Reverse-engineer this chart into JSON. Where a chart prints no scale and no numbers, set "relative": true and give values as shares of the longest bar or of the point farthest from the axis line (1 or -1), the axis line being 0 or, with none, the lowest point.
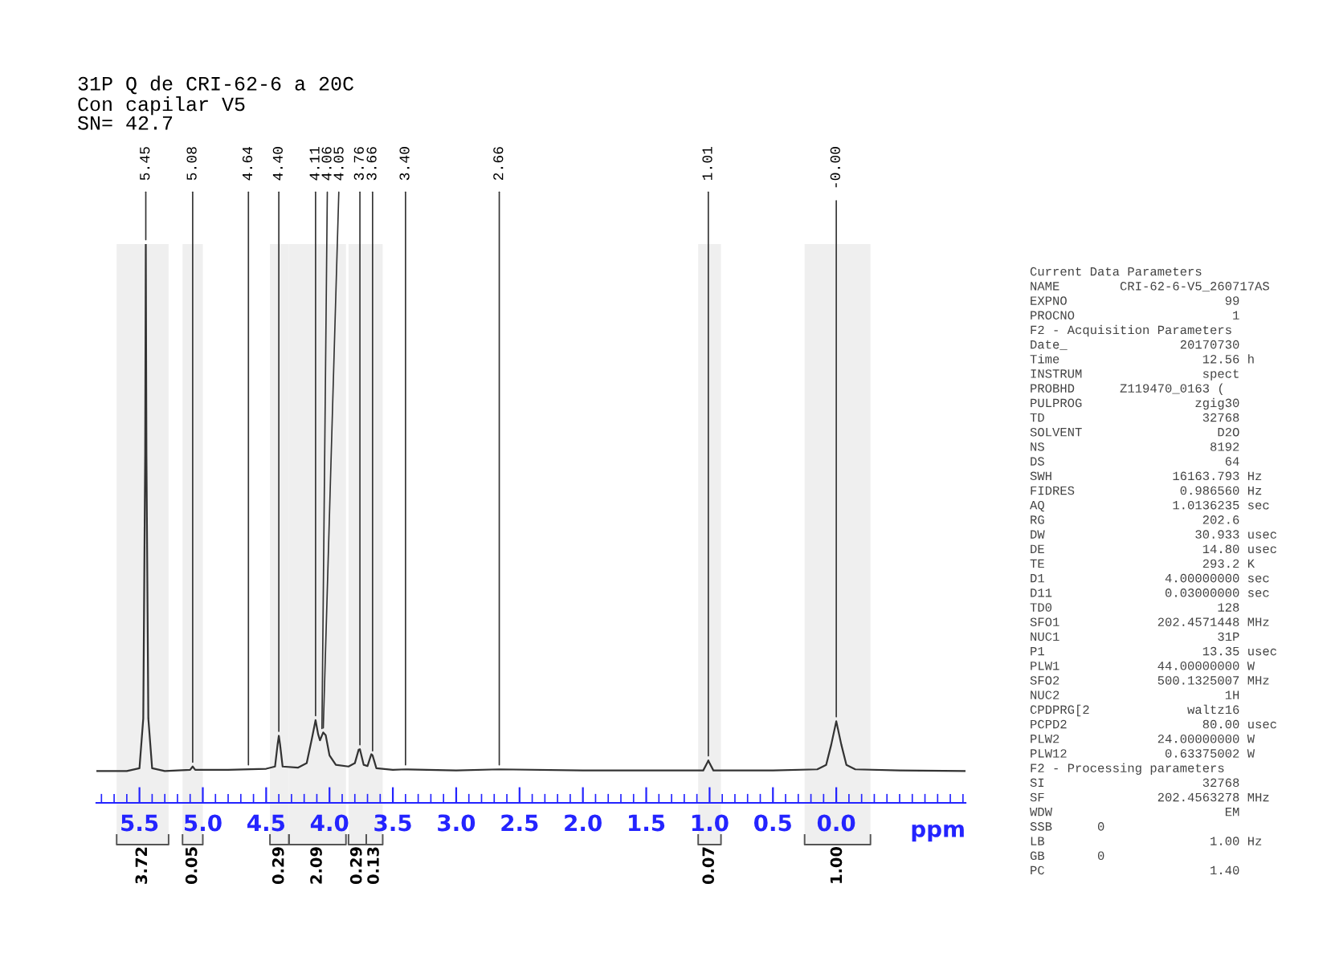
{
  "chart_data": [
    {
      "type": "line",
      "relative": true,
      "title": "31P Q de CRI-62-6 a 20C",
      "subtitle": "Con capilar V5\nSN= 42.7",
      "xlabel": "ppm",
      "xlim": [
        5.84,
        -1.02
      ],
      "xticks": [
        {
          "value": 5.8,
          "label": null
        },
        {
          "value": 5.7,
          "label": null
        },
        {
          "value": 5.6,
          "label": null
        },
        {
          "value": 5.5,
          "label": "5.5"
        },
        {
          "value": 5.4,
          "label": null
        },
        {
          "value": 5.3,
          "label": null
        },
        {
          "value": 5.2,
          "label": null
        },
        {
          "value": 5.1,
          "label": null
        },
        {
          "value": 5.0,
          "label": "5.0"
        },
        {
          "value": 4.9,
          "label": null
        },
        {
          "value": 4.8,
          "label": null
        },
        {
          "value": 4.7,
          "label": null
        },
        {
          "value": 4.6,
          "label": null
        },
        {
          "value": 4.5,
          "label": "4.5"
        },
        {
          "value": 4.4,
          "label": null
        },
        {
          "value": 4.3,
          "label": null
        },
        {
          "value": 4.2,
          "label": null
        },
        {
          "value": 4.1,
          "label": null
        },
        {
          "value": 4.0,
          "label": "4.0"
        },
        {
          "value": 3.9,
          "label": null
        },
        {
          "value": 3.8,
          "label": null
        },
        {
          "value": 3.7,
          "label": null
        },
        {
          "value": 3.6,
          "label": null
        },
        {
          "value": 3.5,
          "label": "3.5"
        },
        {
          "value": 3.4,
          "label": null
        },
        {
          "value": 3.3,
          "label": null
        },
        {
          "value": 3.2,
          "label": null
        },
        {
          "value": 3.1,
          "label": null
        },
        {
          "value": 3.0,
          "label": "3.0"
        },
        {
          "value": 2.9,
          "label": null
        },
        {
          "value": 2.8,
          "label": null
        },
        {
          "value": 2.7,
          "label": null
        },
        {
          "value": 2.6,
          "label": null
        },
        {
          "value": 2.5,
          "label": "2.5"
        },
        {
          "value": 2.4,
          "label": null
        },
        {
          "value": 2.3,
          "label": null
        },
        {
          "value": 2.2,
          "label": null
        },
        {
          "value": 2.1,
          "label": null
        },
        {
          "value": 2.0,
          "label": "2.0"
        },
        {
          "value": 1.9,
          "label": null
        },
        {
          "value": 1.8,
          "label": null
        },
        {
          "value": 1.7,
          "label": null
        },
        {
          "value": 1.6,
          "label": null
        },
        {
          "value": 1.5,
          "label": "1.5"
        },
        {
          "value": 1.4,
          "label": null
        },
        {
          "value": 1.3,
          "label": null
        },
        {
          "value": 1.2,
          "label": null
        },
        {
          "value": 1.1,
          "label": null
        },
        {
          "value": 1.0,
          "label": "1.0"
        },
        {
          "value": 0.9,
          "label": null
        },
        {
          "value": 0.8,
          "label": null
        },
        {
          "value": 0.7,
          "label": null
        },
        {
          "value": 0.6,
          "label": null
        },
        {
          "value": 0.5,
          "label": "0.5"
        },
        {
          "value": 0.4,
          "label": null
        },
        {
          "value": 0.3,
          "label": null
        },
        {
          "value": 0.2,
          "label": null
        },
        {
          "value": 0.1,
          "label": null
        },
        {
          "value": 0.0,
          "label": "0.0"
        },
        {
          "value": -0.1,
          "label": null
        },
        {
          "value": -0.2,
          "label": null
        },
        {
          "value": -0.3,
          "label": null
        },
        {
          "value": -0.4,
          "label": null
        },
        {
          "value": -0.5,
          "label": null
        },
        {
          "value": -0.6,
          "label": null
        },
        {
          "value": -0.7,
          "label": null
        },
        {
          "value": -0.8,
          "label": null
        },
        {
          "value": -0.9,
          "label": null
        },
        {
          "value": -1.0,
          "label": null
        }
      ],
      "bands": [
        {
          "axis": "x",
          "from": 5.68,
          "to": 5.27,
          "label": "3.72"
        },
        {
          "axis": "x",
          "from": 5.16,
          "to": 5.0,
          "label": "0.05"
        },
        {
          "axis": "x",
          "from": 4.47,
          "to": 4.32,
          "label": "0.29"
        },
        {
          "axis": "x",
          "from": 4.32,
          "to": 3.87,
          "label": "2.09"
        },
        {
          "axis": "x",
          "from": 3.85,
          "to": 3.71,
          "label": "0.29"
        },
        {
          "axis": "x",
          "from": 3.71,
          "to": 3.58,
          "label": "0.13"
        },
        {
          "axis": "x",
          "from": 1.09,
          "to": 0.91,
          "label": "0.07"
        },
        {
          "axis": "x",
          "from": 0.25,
          "to": -0.27,
          "label": "1.00"
        }
      ],
      "grid": false,
      "legend": false,
      "marker": "none",
      "line_style": "solid",
      "series": [
        {
          "color": "#333333",
          "x": [
            5.84,
            5.6,
            5.5,
            5.47,
            5.455,
            5.45,
            5.445,
            5.43,
            5.4,
            5.3,
            5.1,
            5.08,
            5.06,
            4.8,
            4.5,
            4.43,
            4.41,
            4.4,
            4.39,
            4.37,
            4.25,
            4.18,
            4.14,
            4.11,
            4.09,
            4.075,
            4.05,
            4.03,
            4.0,
            3.95,
            3.85,
            3.8,
            3.77,
            3.76,
            3.73,
            3.7,
            3.67,
            3.66,
            3.63,
            3.5,
            3.4,
            3.0,
            2.66,
            2.0,
            1.5,
            1.05,
            1.02,
            1.01,
            1.0,
            0.97,
            0.5,
            0.15,
            0.08,
            0.04,
            0.0,
            -0.04,
            -0.08,
            -0.15,
            -0.5,
            -1.02
          ],
          "values": [
            0.057,
            0.057,
            0.062,
            0.151,
            0.623,
            1,
            0.623,
            0.151,
            0.062,
            0.057,
            0.059,
            0.065,
            0.059,
            0.059,
            0.061,
            0.065,
            0.104,
            0.12,
            0.104,
            0.065,
            0.063,
            0.071,
            0.114,
            0.148,
            0.123,
            0.112,
            0.126,
            0.121,
            0.085,
            0.068,
            0.065,
            0.071,
            0.095,
            0.096,
            0.068,
            0.066,
            0.087,
            0.085,
            0.062,
            0.059,
            0.06,
            0.058,
            0.06,
            0.058,
            0.058,
            0.058,
            0.071,
            0.076,
            0.071,
            0.058,
            0.058,
            0.06,
            0.068,
            0.104,
            0.146,
            0.104,
            0.068,
            0.06,
            0.058,
            0.057
          ]
        }
      ],
      "annotations": [
        {
          "text": "5.45",
          "x": 5.45,
          "y": 1
        },
        {
          "text": "5.08",
          "x": 5.08,
          "y": 0.065
        },
        {
          "text": "4.64",
          "x": 4.64,
          "y": 0.06
        },
        {
          "text": "4.40",
          "x": 4.4,
          "y": 0.12
        },
        {
          "text": "4.11",
          "x": 4.11,
          "y": 0.148
        },
        {
          "text": "4.06",
          "x": 4.06,
          "y": 0.125
        },
        {
          "text": "4.05",
          "x": 4.05,
          "y": 0.126
        },
        {
          "text": "3.76",
          "x": 3.76,
          "y": 0.096
        },
        {
          "text": "3.66",
          "x": 3.66,
          "y": 0.085
        },
        {
          "text": "3.40",
          "x": 3.4,
          "y": 0.06
        },
        {
          "text": "2.66",
          "x": 2.66,
          "y": 0.06
        },
        {
          "text": "1.01",
          "x": 1.01,
          "y": 0.076
        },
        {
          "text": "-0.00",
          "x": 0.0,
          "y": 0.146
        }
      ]
    },
    {
      "type": "other",
      "annotations": [
        "Current Data Parameters",
        "NAME        CRI-62-6-V5_260717AS",
        "EXPNO                     99",
        "PROCNO                     1",
        "F2 - Acquisition Parameters",
        "Date_               20170730",
        "Time                   12.56 h",
        "INSTRUM                spect",
        "PROBHD      Z119470_0163 (",
        "PULPROG               zgig30",
        "TD                     32768",
        "SOLVENT                  D2O",
        "NS                      8192",
        "DS                        64",
        "SWH                16163.793 Hz",
        "FIDRES              0.986560 Hz",
        "AQ                 1.0136235 sec",
        "RG                     202.6",
        "DW                    30.933 usec",
        "DE                     14.80 usec",
        "TE                     293.2 K",
        "D1                4.00000000 sec",
        "D11               0.03000000 sec",
        "TD0                      128",
        "SFO1             202.4571448 MHz",
        "NUC1                     31P",
        "P1                     13.35 usec",
        "PLW1             44.00000000 W",
        "SFO2             500.1325007 MHz",
        "NUC2                      1H",
        "CPDPRG[2             waltz16",
        "PCPD2                  80.00 usec",
        "PLW2             24.00000000 W",
        "PLW12             0.63375002 W",
        "F2 - Processing parameters",
        "SI                     32768",
        "SF               202.4563278 MHz",
        "WDW                       EM",
        "SSB      0",
        "LB                      1.00 Hz",
        "GB       0",
        "PC                      1.40"
      ]
    }
  ]
}
